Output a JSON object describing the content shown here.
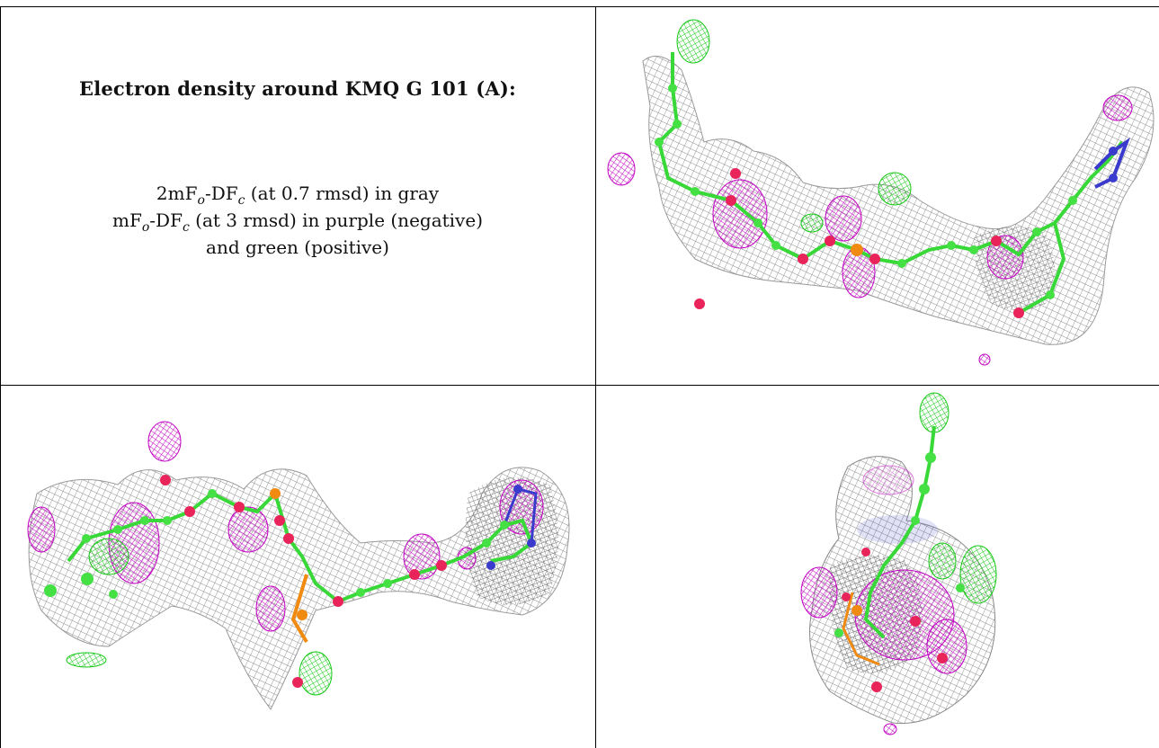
{
  "caption": {
    "title": "Electron density around KMQ G 101 (A):",
    "line1": {
      "a": "2mF",
      "b": "o",
      "c": "-DF",
      "d": "c",
      "e": " (at 0.7 rmsd) in gray"
    },
    "line2": {
      "a": "mF",
      "b": "o",
      "c": "-DF",
      "d": "c",
      "e": " (at 3 rmsd) in purple (negative)"
    },
    "line3": "and green (positive)"
  },
  "colors": {
    "density_2fofc": "#8f8f8f",
    "diff_negative": "#cc00cc",
    "diff_positive": "#22dd22",
    "carbon": "#44e044",
    "oxygen": "#e8245a",
    "nitrogen": "#3a3acc",
    "phosphorus": "#f08a10"
  },
  "views": [
    {
      "id": "view-top-right",
      "icon": "density-view-1"
    },
    {
      "id": "view-bottom-left",
      "icon": "density-view-2"
    },
    {
      "id": "view-bottom-right",
      "icon": "density-view-3"
    }
  ]
}
